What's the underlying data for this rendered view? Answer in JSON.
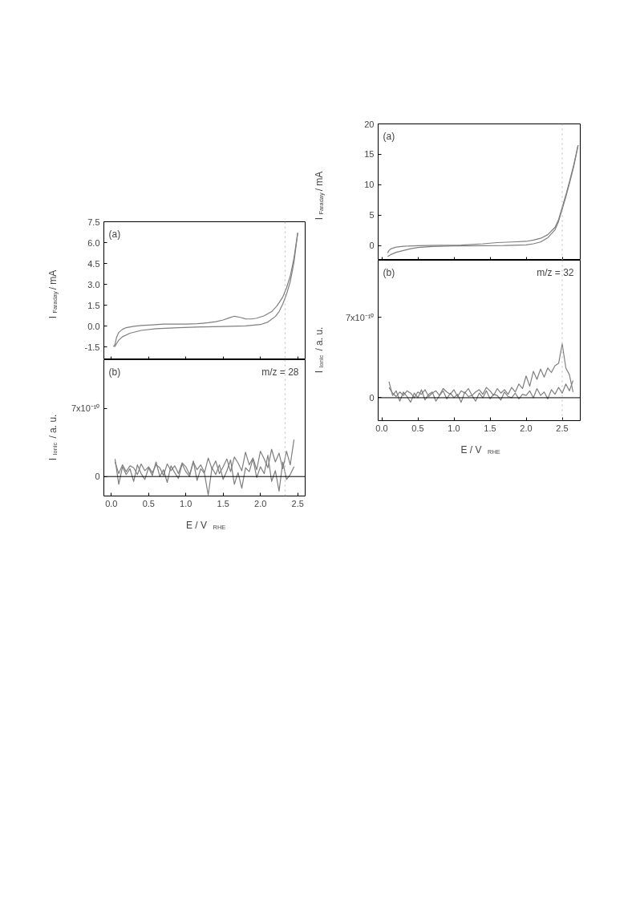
{
  "chart_data": [
    {
      "type": "line",
      "ylabel": "I$_{Faraday}$ / mA",
      "annotations": [
        "(a)"
      ],
      "xlim": [
        -0.1,
        2.6
      ],
      "xticks": [
        0.0,
        0.5,
        1.0,
        1.5,
        2.0,
        2.5
      ],
      "ylim": [
        -2.4,
        7.5
      ],
      "yticks": [
        -1.5,
        {
          "value": 0,
          "label": "0.0"
        },
        1.5,
        {
          "value": 3,
          "label": "3.0"
        },
        4.5,
        {
          "value": 6,
          "label": "6.0"
        },
        7.5
      ],
      "tick_labels": "y",
      "ref_lines": [
        {
          "axis": "x",
          "value": 2.33,
          "color": "#bbbbbb",
          "line_style": "dotted"
        }
      ],
      "series": [
        {
          "color": "#7f7f7f",
          "x": [
            0.03,
            0.05,
            0.07,
            0.1,
            0.15,
            0.2,
            0.3,
            0.4,
            0.55,
            0.7,
            0.85,
            1.0,
            1.15,
            1.3,
            1.4,
            1.5,
            1.58,
            1.65,
            1.72,
            1.8,
            1.88,
            1.95,
            2.05,
            2.15,
            2.22,
            2.3,
            2.35,
            2.4,
            2.45,
            2.5
          ],
          "values": [
            -1.45,
            -1.3,
            -0.8,
            -0.45,
            -0.22,
            -0.1,
            0.0,
            0.05,
            0.1,
            0.15,
            0.15,
            0.15,
            0.18,
            0.25,
            0.33,
            0.45,
            0.6,
            0.72,
            0.65,
            0.53,
            0.52,
            0.58,
            0.75,
            1.05,
            1.45,
            2.1,
            2.75,
            3.6,
            4.9,
            6.7
          ]
        },
        {
          "color": "#7f7f7f",
          "x": [
            2.5,
            2.45,
            2.4,
            2.35,
            2.3,
            2.25,
            2.2,
            2.1,
            2.0,
            1.8,
            1.5,
            1.2,
            0.9,
            0.6,
            0.4,
            0.25,
            0.15,
            0.1,
            0.07,
            0.05,
            0.03
          ],
          "values": [
            6.7,
            4.6,
            3.2,
            2.3,
            1.6,
            1.05,
            0.7,
            0.3,
            0.12,
            0.02,
            -0.02,
            -0.05,
            -0.1,
            -0.18,
            -0.3,
            -0.5,
            -0.75,
            -1.0,
            -1.25,
            -1.45,
            -1.45
          ]
        }
      ]
    },
    {
      "type": "line",
      "xlabel": "E / V$_{RHE}$",
      "ylabel": "I$_{Ionic}$ / a. u.",
      "annotations": [
        "(b)",
        "m/z = 28"
      ],
      "xlim": [
        -0.1,
        2.6
      ],
      "xticks": [
        {
          "value": 0,
          "label": "0.0"
        },
        0.5,
        {
          "value": 1,
          "label": "1.0"
        },
        1.5,
        {
          "value": 2,
          "label": "2.0"
        },
        2.5
      ],
      "ylim": [
        -2e-10,
        1.2e-09
      ],
      "yticks": [
        0,
        {
          "value": 7e-10,
          "label": "7x10⁻¹⁰"
        }
      ],
      "ref_lines": [
        {
          "axis": "x",
          "value": 2.33,
          "color": "#bbbbbb",
          "line_style": "dotted"
        },
        {
          "axis": "y",
          "value": 0,
          "color": "#000000",
          "line_style": "solid"
        }
      ],
      "series": [
        {
          "color": "#7f7f7f",
          "x": [
            0.05,
            0.1,
            0.15,
            0.2,
            0.25,
            0.3,
            0.35,
            0.4,
            0.45,
            0.5,
            0.55,
            0.6,
            0.65,
            0.7,
            0.75,
            0.8,
            0.85,
            0.9,
            0.95,
            1.0,
            1.05,
            1.1,
            1.15,
            1.2,
            1.25,
            1.3,
            1.35,
            1.4,
            1.45,
            1.5,
            1.55,
            1.6,
            1.65,
            1.7,
            1.75,
            1.8,
            1.85,
            1.9,
            1.95,
            2.0,
            2.05,
            2.1,
            2.15,
            2.2,
            2.25,
            2.3,
            2.35,
            2.4,
            2.45
          ],
          "values": [
            1.8e-10,
            -8e-11,
            1e-10,
            2e-11,
            8e-11,
            -5e-11,
            1.2e-10,
            3e-11,
            -3e-11,
            9e-11,
            1e-11,
            1.5e-10,
            0,
            7e-11,
            -6e-11,
            1.1e-10,
            4e-11,
            -2e-11,
            1.3e-10,
            5e-11,
            0,
            1.6e-10,
            -4e-11,
            8e-11,
            3e-11,
            -1.9e-10,
            9e-11,
            2e-11,
            1.2e-10,
            -3e-11,
            6e-11,
            1.7e-10,
            -8e-11,
            4e-11,
            -1.2e-10,
            9e-11,
            5e-11,
            1.8e-10,
            -1e-11,
            1e-10,
            3e-11,
            2.2e-10,
            -5e-11,
            6e-11,
            -1.5e-10,
            1.5e-10,
            -3e-11,
            2e-11,
            1e-10
          ]
        },
        {
          "color": "#7f7f7f",
          "x": [
            2.45,
            2.4,
            2.35,
            2.3,
            2.25,
            2.2,
            2.15,
            2.1,
            2.05,
            2.0,
            1.95,
            1.9,
            1.85,
            1.8,
            1.75,
            1.7,
            1.65,
            1.6,
            1.55,
            1.5,
            1.45,
            1.4,
            1.35,
            1.3,
            1.25,
            1.2,
            1.15,
            1.1,
            1.05,
            1.0,
            0.95,
            0.9,
            0.85,
            0.8,
            0.75,
            0.7,
            0.65,
            0.6,
            0.55,
            0.5,
            0.45,
            0.4,
            0.35,
            0.3,
            0.25,
            0.2,
            0.15,
            0.1,
            0.05
          ],
          "values": [
            3.8e-10,
            1.2e-10,
            2.6e-10,
            8e-11,
            2.4e-10,
            1.5e-10,
            2.8e-10,
            9e-11,
            1.8e-10,
            2.6e-10,
            7e-11,
            1.9e-10,
            1.2e-10,
            2.5e-10,
            6e-11,
            1.4e-10,
            2e-10,
            5e-11,
            1.8e-10,
            1e-10,
            3e-11,
            1.6e-10,
            8e-11,
            1.9e-10,
            4e-11,
            1.2e-10,
            7e-11,
            1.5e-10,
            2e-11,
            1e-10,
            1.4e-10,
            3e-11,
            1.1e-10,
            6e-11,
            1.3e-10,
            1e-11,
            9e-11,
            1.2e-10,
            4e-11,
            1e-10,
            6e-11,
            1.3e-10,
            2e-11,
            9e-11,
            1.1e-10,
            5e-11,
            1.2e-10,
            3e-11,
            1.5e-10
          ]
        }
      ]
    },
    {
      "type": "line",
      "ylabel": "I$_{Faraday}$ / mA",
      "annotations": [
        "(a)"
      ],
      "xlim": [
        -0.05,
        2.75
      ],
      "xticks": [
        0.0,
        0.5,
        1.0,
        1.5,
        2.0,
        2.5
      ],
      "ylim": [
        -2.4,
        20
      ],
      "yticks": [
        0,
        5,
        10,
        15,
        20
      ],
      "tick_labels": "y",
      "ref_lines": [
        {
          "axis": "x",
          "value": 2.5,
          "color": "#bbbbbb",
          "line_style": "dotted"
        }
      ],
      "series": [
        {
          "color": "#7f7f7f",
          "x": [
            0.08,
            0.1,
            0.13,
            0.2,
            0.3,
            0.5,
            0.8,
            1.1,
            1.4,
            1.6,
            1.8,
            2.0,
            2.1,
            2.2,
            2.3,
            2.4,
            2.45,
            2.5,
            2.55,
            2.6,
            2.66,
            2.72
          ],
          "values": [
            -1.2,
            -0.8,
            -0.5,
            -0.25,
            -0.1,
            0.0,
            0.05,
            0.1,
            0.3,
            0.5,
            0.6,
            0.7,
            0.9,
            1.2,
            1.8,
            3.0,
            4.3,
            6.3,
            8.3,
            10.5,
            13.3,
            16.5
          ]
        },
        {
          "color": "#7f7f7f",
          "x": [
            2.72,
            2.66,
            2.6,
            2.55,
            2.5,
            2.45,
            2.4,
            2.3,
            2.2,
            2.1,
            2.0,
            1.7,
            1.4,
            1.0,
            0.7,
            0.5,
            0.4,
            0.3,
            0.2,
            0.12,
            0.08
          ],
          "values": [
            16.5,
            13.0,
            10.2,
            8.0,
            6.0,
            4.0,
            2.6,
            1.3,
            0.6,
            0.3,
            0.12,
            0.02,
            0.0,
            -0.05,
            -0.15,
            -0.3,
            -0.5,
            -0.8,
            -1.1,
            -1.5,
            -1.8
          ]
        }
      ]
    },
    {
      "type": "line",
      "xlabel": "E / V$_{RHE}$",
      "ylabel": "I$_{Ionic}$ / a. u.",
      "annotations": [
        "(b)",
        "m/z = 32"
      ],
      "xlim": [
        -0.05,
        2.75
      ],
      "xticks": [
        {
          "value": 0,
          "label": "0.0"
        },
        0.5,
        {
          "value": 1,
          "label": "1.0"
        },
        1.5,
        {
          "value": 2,
          "label": "2.0"
        },
        2.5
      ],
      "ylim": [
        -2e-10,
        1.2e-09
      ],
      "yticks": [
        0,
        {
          "value": 7e-10,
          "label": "7x10⁻¹⁰"
        }
      ],
      "ref_lines": [
        {
          "axis": "x",
          "value": 2.5,
          "color": "#bbbbbb",
          "line_style": "dotted"
        },
        {
          "axis": "y",
          "value": 0,
          "color": "#000000",
          "line_style": "solid"
        }
      ],
      "series": [
        {
          "color": "#7f7f7f",
          "x": [
            0.1,
            0.15,
            0.2,
            0.25,
            0.3,
            0.35,
            0.4,
            0.45,
            0.5,
            0.55,
            0.6,
            0.65,
            0.7,
            0.75,
            0.8,
            0.85,
            0.9,
            0.95,
            1.0,
            1.05,
            1.1,
            1.15,
            1.2,
            1.25,
            1.3,
            1.35,
            1.4,
            1.45,
            1.5,
            1.55,
            1.6,
            1.65,
            1.7,
            1.75,
            1.8,
            1.85,
            1.9,
            1.95,
            2.0,
            2.05,
            2.1,
            2.15,
            2.2,
            2.25,
            2.3,
            2.35,
            2.4,
            2.45,
            2.5,
            2.55,
            2.6,
            2.65
          ],
          "values": [
            1.4e-10,
            2e-11,
            6e-11,
            -3e-11,
            5e-11,
            1e-11,
            -4e-11,
            4e-11,
            0,
            7e-11,
            -2e-11,
            3e-11,
            5e-11,
            -3e-11,
            2e-11,
            6e-11,
            -1e-11,
            4e-11,
            0,
            3e-11,
            -4e-11,
            5e-11,
            1e-11,
            2e-11,
            -3e-11,
            4e-11,
            0,
            6e-11,
            -1e-11,
            3e-11,
            2e-11,
            -2e-11,
            5e-11,
            1e-11,
            0,
            4e-11,
            -1e-11,
            3e-11,
            2e-11,
            6e-11,
            0,
            8e-11,
            2e-11,
            5e-11,
            -1e-11,
            7e-11,
            3e-11,
            9e-11,
            4e-11,
            1.2e-10,
            6e-11,
            1.5e-10
          ]
        },
        {
          "color": "#7f7f7f",
          "x": [
            2.65,
            2.6,
            2.55,
            2.5,
            2.45,
            2.4,
            2.35,
            2.3,
            2.25,
            2.2,
            2.15,
            2.1,
            2.05,
            2.0,
            1.95,
            1.9,
            1.85,
            1.8,
            1.75,
            1.7,
            1.65,
            1.6,
            1.55,
            1.5,
            1.45,
            1.4,
            1.35,
            1.3,
            1.25,
            1.2,
            1.15,
            1.1,
            1.05,
            1.0,
            0.95,
            0.9,
            0.85,
            0.8,
            0.75,
            0.7,
            0.65,
            0.6,
            0.55,
            0.5,
            0.45,
            0.4,
            0.35,
            0.3,
            0.25,
            0.2,
            0.15,
            0.1
          ],
          "values": [
            5e-11,
            2e-10,
            2.6e-10,
            4.7e-10,
            3e-10,
            2.8e-10,
            2.2e-10,
            2.6e-10,
            1.8e-10,
            2.5e-10,
            1.6e-10,
            2.3e-10,
            1e-10,
            1.9e-10,
            8e-11,
            1.2e-10,
            5e-11,
            9e-11,
            3e-11,
            7e-11,
            4e-11,
            8e-11,
            2e-11,
            6e-11,
            9e-11,
            3e-11,
            7e-11,
            5e-11,
            2e-11,
            8e-11,
            4e-11,
            6e-11,
            1e-11,
            7e-11,
            3e-11,
            5e-11,
            8e-11,
            2e-11,
            6e-11,
            4e-11,
            1e-11,
            7e-11,
            3e-11,
            5e-11,
            0,
            4e-11,
            6e-11,
            2e-11,
            5e-11,
            1e-11,
            4e-11,
            9e-11
          ]
        }
      ]
    }
  ]
}
